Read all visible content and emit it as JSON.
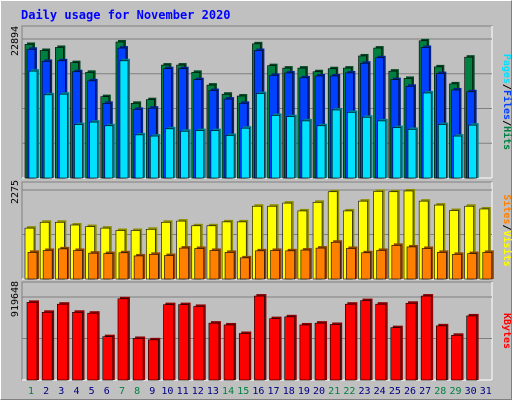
{
  "title": "Daily usage for November 2020",
  "colors": {
    "hits": "#008040",
    "files": "#0040ff",
    "pages": "#00e0ff",
    "visits": "#ffff00",
    "sites": "#ff8000",
    "kbytes": "#ff0000",
    "weekend_day": "#008040",
    "weekday": "#000080"
  },
  "chart_data": [
    {
      "type": "bar",
      "panel": "top",
      "ymax_label": "22894",
      "ylim": [
        0,
        22894
      ],
      "right_labels": [
        "Pages",
        "/",
        "Files",
        "/",
        "Hits"
      ],
      "categories": [
        "1",
        "2",
        "3",
        "4",
        "5",
        "6",
        "7",
        "8",
        "9",
        "10",
        "11",
        "12",
        "13",
        "14",
        "15",
        "16",
        "17",
        "18",
        "19",
        "20",
        "21",
        "22",
        "23",
        "24",
        "25",
        "26",
        "27",
        "28",
        "29",
        "30",
        "31"
      ],
      "series": [
        {
          "name": "Hits",
          "values": [
            22000,
            21000,
            21500,
            19000,
            17400,
            13400,
            22400,
            12300,
            12900,
            18600,
            18600,
            17400,
            15300,
            13800,
            13500,
            22100,
            18500,
            18100,
            18100,
            17500,
            18000,
            18100,
            20100,
            21400,
            17600,
            16400,
            22600,
            18300,
            15500,
            19900,
            0
          ]
        },
        {
          "name": "Files",
          "values": [
            21200,
            19200,
            19300,
            17500,
            16000,
            12300,
            21400,
            11300,
            11500,
            18000,
            18000,
            16200,
            14400,
            13000,
            12300,
            21000,
            16900,
            17300,
            16500,
            16800,
            16800,
            17300,
            18900,
            19800,
            16200,
            15100,
            21500,
            17200,
            14500,
            14200,
            0
          ]
        },
        {
          "name": "Pages",
          "values": [
            17600,
            13700,
            13800,
            8800,
            9200,
            8600,
            19300,
            7100,
            6900,
            8100,
            7700,
            7800,
            7800,
            7000,
            8200,
            13900,
            10300,
            10100,
            9400,
            8600,
            11200,
            10800,
            10000,
            9400,
            8300,
            8000,
            14000,
            8800,
            6900,
            8700,
            0
          ]
        }
      ]
    },
    {
      "type": "bar",
      "panel": "middle",
      "ymax_label": "2275",
      "ylim": [
        0,
        2275
      ],
      "right_labels": [
        "Sites",
        "/",
        "Visits"
      ],
      "categories": [
        "1",
        "2",
        "3",
        "4",
        "5",
        "6",
        "7",
        "8",
        "9",
        "10",
        "11",
        "12",
        "13",
        "14",
        "15",
        "16",
        "17",
        "18",
        "19",
        "20",
        "21",
        "22",
        "23",
        "24",
        "25",
        "26",
        "27",
        "28",
        "29",
        "30",
        "31"
      ],
      "series": [
        {
          "name": "Visits",
          "values": [
            1300,
            1450,
            1450,
            1380,
            1340,
            1300,
            1240,
            1240,
            1270,
            1450,
            1480,
            1360,
            1360,
            1460,
            1460,
            1860,
            1860,
            1940,
            1740,
            1960,
            2230,
            1740,
            1990,
            2240,
            2230,
            2250,
            1990,
            1890,
            1750,
            1860,
            1790
          ]
        },
        {
          "name": "Sites",
          "values": [
            680,
            730,
            770,
            730,
            660,
            650,
            670,
            590,
            630,
            600,
            790,
            780,
            730,
            680,
            540,
            720,
            730,
            720,
            740,
            790,
            940,
            780,
            670,
            730,
            860,
            820,
            780,
            680,
            630,
            650,
            680
          ]
        }
      ]
    },
    {
      "type": "bar",
      "panel": "bottom",
      "ymax_label": "919648",
      "ylim": [
        0,
        919648
      ],
      "right_labels": [
        "KBytes"
      ],
      "categories": [
        "1",
        "2",
        "3",
        "4",
        "5",
        "6",
        "7",
        "8",
        "9",
        "10",
        "11",
        "12",
        "13",
        "14",
        "15",
        "16",
        "17",
        "18",
        "19",
        "20",
        "21",
        "22",
        "23",
        "24",
        "25",
        "26",
        "27",
        "28",
        "29",
        "30",
        "31"
      ],
      "series": [
        {
          "name": "KBytes",
          "values": [
            860000,
            750000,
            840000,
            750000,
            740000,
            480000,
            900000,
            460000,
            445000,
            835000,
            835000,
            815000,
            630000,
            610000,
            515000,
            930000,
            680000,
            700000,
            610000,
            630000,
            615000,
            840000,
            880000,
            840000,
            580000,
            850000,
            930000,
            600000,
            495000,
            710000,
            0
          ]
        }
      ]
    }
  ]
}
